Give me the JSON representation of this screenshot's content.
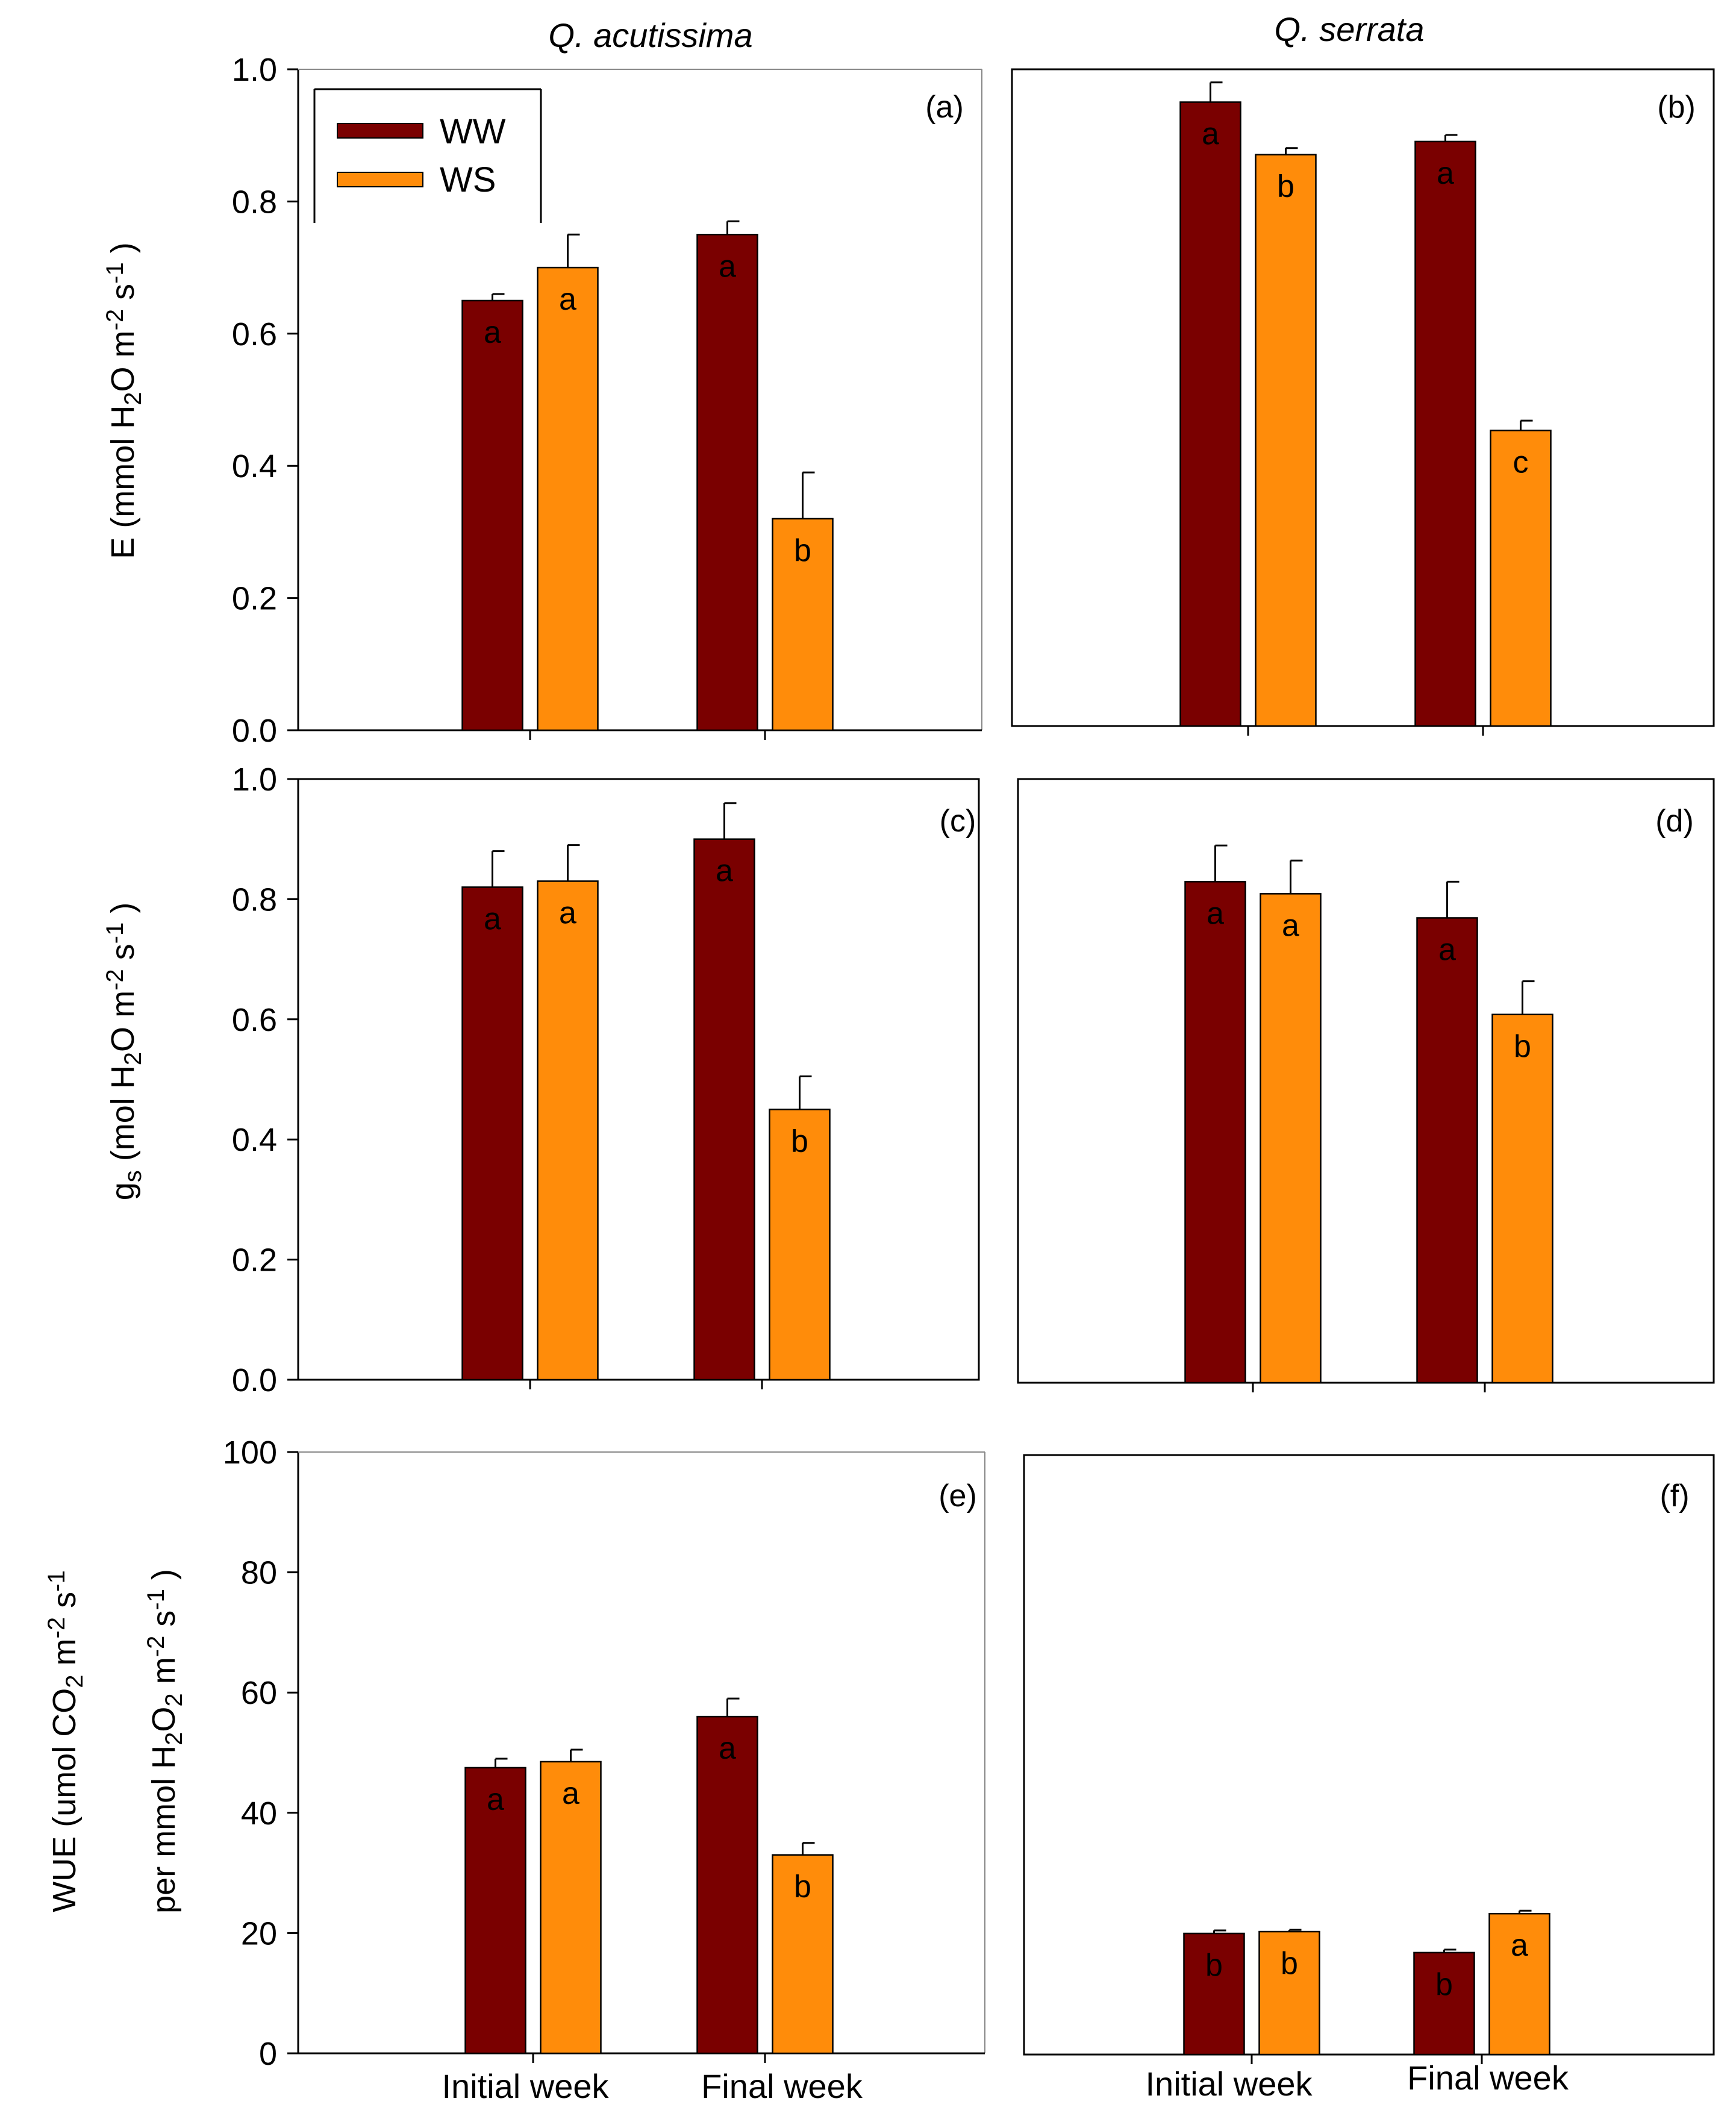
{
  "colors": {
    "WW": "#7a0000",
    "WS": "#ff8c0a"
  },
  "column_titles": [
    "Q. acutissima",
    "Q. serrata"
  ],
  "legend": {
    "items": [
      "WW",
      "WS"
    ]
  },
  "category_labels": [
    "Initial week",
    "Final week"
  ],
  "y_axis_titles": {
    "E": {
      "prefix": "E (mmol H",
      "sub1": "2",
      "mid": "O m",
      "sup1": "-2",
      "mid2": " s",
      "sup2": "-1",
      "end": " )"
    },
    "gs": {
      "main": "g",
      "main_sub": "s",
      "prefix": " (mol H",
      "sub1": "2",
      "mid": "O m",
      "sup1": "-2",
      "mid2": " s",
      "sup2": "-1",
      "end": " )"
    },
    "WUE": {
      "line1_prefix": "WUE (umol CO",
      "line1_sub": "2",
      "line1_mid": " m",
      "line1_sup1": "-2",
      "line1_mid2": " s",
      "line1_sup2": "-1",
      "line2_prefix": "per mmol H",
      "line2_sub1": "2",
      "line2_mid": "O",
      "line2_sub2": "2",
      "line2_mid2": " m",
      "line2_sup1": "-2",
      "line2_mid3": " s",
      "line2_sup2": "-1",
      "line2_end": " )"
    }
  },
  "chart_data": [
    {
      "type": "bar",
      "panel": "(a)",
      "species": "Q. acutissima",
      "variable": "E",
      "categories": [
        "Initial week",
        "Final week"
      ],
      "ylim": [
        0,
        1.0
      ],
      "yticks": [
        "0.0",
        "0.2",
        "0.4",
        "0.6",
        "0.8",
        "1.0"
      ],
      "ytick_values": [
        0,
        0.2,
        0.4,
        0.6,
        0.8,
        1.0
      ],
      "series": [
        {
          "name": "WW",
          "values": [
            0.65,
            0.75
          ],
          "errors": [
            0.01,
            0.02
          ],
          "letters": [
            "a",
            "a"
          ]
        },
        {
          "name": "WS",
          "values": [
            0.7,
            0.32
          ],
          "errors": [
            0.05,
            0.07
          ],
          "letters": [
            "a",
            "b"
          ]
        }
      ]
    },
    {
      "type": "bar",
      "panel": "(b)",
      "species": "Q. serrata",
      "variable": "E",
      "categories": [
        "Initial week",
        "Final week"
      ],
      "ylim": [
        0,
        1.0
      ],
      "series": [
        {
          "name": "WW",
          "values": [
            0.95,
            0.89
          ],
          "errors": [
            0.03,
            0.01
          ],
          "letters": [
            "a",
            "a"
          ]
        },
        {
          "name": "WS",
          "values": [
            0.87,
            0.45
          ],
          "errors": [
            0.01,
            0.015
          ],
          "letters": [
            "b",
            "c"
          ]
        }
      ]
    },
    {
      "type": "bar",
      "panel": "(c)",
      "species": "Q. acutissima",
      "variable": "gs",
      "categories": [
        "Initial week",
        "Final week"
      ],
      "ylim": [
        0,
        1.0
      ],
      "yticks": [
        "0.0",
        "0.2",
        "0.4",
        "0.6",
        "0.8",
        "1.0"
      ],
      "ytick_values": [
        0,
        0.2,
        0.4,
        0.6,
        0.8,
        1.0
      ],
      "series": [
        {
          "name": "WW",
          "values": [
            0.82,
            0.9
          ],
          "errors": [
            0.06,
            0.06
          ],
          "letters": [
            "a",
            "a"
          ]
        },
        {
          "name": "WS",
          "values": [
            0.83,
            0.45
          ],
          "errors": [
            0.06,
            0.055
          ],
          "letters": [
            "a",
            "b"
          ]
        }
      ]
    },
    {
      "type": "bar",
      "panel": "(d)",
      "species": "Q. serrata",
      "variable": "gs",
      "categories": [
        "Initial week",
        "Final week"
      ],
      "ylim": [
        0,
        1.0
      ],
      "series": [
        {
          "name": "WW",
          "values": [
            0.83,
            0.77
          ],
          "errors": [
            0.06,
            0.06
          ],
          "letters": [
            "a",
            "a"
          ]
        },
        {
          "name": "WS",
          "values": [
            0.81,
            0.61
          ],
          "errors": [
            0.055,
            0.055
          ],
          "letters": [
            "a",
            "b"
          ]
        }
      ]
    },
    {
      "type": "bar",
      "panel": "(e)",
      "species": "Q. acutissima",
      "variable": "WUE",
      "categories": [
        "Initial week",
        "Final week"
      ],
      "ylim": [
        0,
        100
      ],
      "yticks": [
        "0",
        "20",
        "40",
        "60",
        "80",
        "100"
      ],
      "ytick_values": [
        0,
        20,
        40,
        60,
        80,
        100
      ],
      "series": [
        {
          "name": "WW",
          "values": [
            47.5,
            56
          ],
          "errors": [
            1.5,
            3
          ],
          "letters": [
            "a",
            "a"
          ]
        },
        {
          "name": "WS",
          "values": [
            48.5,
            33
          ],
          "errors": [
            2,
            2
          ],
          "letters": [
            "a",
            "b"
          ]
        }
      ]
    },
    {
      "type": "bar",
      "panel": "(f)",
      "species": "Q. serrata",
      "variable": "WUE",
      "categories": [
        "Initial week",
        "Final week"
      ],
      "ylim": [
        0,
        100
      ],
      "series": [
        {
          "name": "WW",
          "values": [
            20.2,
            17
          ],
          "errors": [
            0.5,
            0.5
          ],
          "letters": [
            "b",
            "b"
          ]
        },
        {
          "name": "WS",
          "values": [
            20.5,
            23.5
          ],
          "errors": [
            0.3,
            0.5
          ],
          "letters": [
            "b",
            "a"
          ]
        }
      ]
    }
  ]
}
